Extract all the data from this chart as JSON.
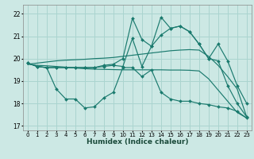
{
  "xlabel": "Humidex (Indice chaleur)",
  "background_color": "#cce8e4",
  "grid_color": "#aad4cf",
  "line_color": "#1a7a6e",
  "ylim": [
    16.8,
    22.4
  ],
  "yticks": [
    17,
    18,
    19,
    20,
    21,
    22
  ],
  "n_points": 24,
  "series": {
    "upper_data": [
      19.8,
      19.65,
      19.6,
      19.6,
      19.6,
      19.6,
      19.6,
      19.6,
      19.7,
      19.75,
      20.0,
      21.8,
      20.85,
      20.55,
      21.05,
      21.35,
      21.45,
      21.2,
      20.65,
      20.0,
      20.65,
      19.9,
      18.8,
      18.0
    ],
    "main_data": [
      19.8,
      19.65,
      19.6,
      19.6,
      19.6,
      19.6,
      19.6,
      19.6,
      19.65,
      19.7,
      19.65,
      20.9,
      19.65,
      20.55,
      21.85,
      21.35,
      21.45,
      21.2,
      20.65,
      20.0,
      19.9,
      18.8,
      18.0,
      17.4
    ],
    "lower_data": [
      19.8,
      19.65,
      19.6,
      18.65,
      18.2,
      18.2,
      17.8,
      17.85,
      18.25,
      18.5,
      19.6,
      19.6,
      19.2,
      19.5,
      18.5,
      18.2,
      18.1,
      18.1,
      18.0,
      17.95,
      17.85,
      17.8,
      17.65,
      17.35
    ],
    "trend_upper": [
      19.75,
      19.8,
      19.85,
      19.9,
      19.93,
      19.95,
      19.97,
      20.0,
      20.02,
      20.05,
      20.1,
      20.15,
      20.2,
      20.25,
      20.3,
      20.35,
      20.38,
      20.4,
      20.38,
      20.1,
      19.7,
      19.2,
      18.65,
      17.4
    ],
    "trend_lower": [
      19.75,
      19.7,
      19.68,
      19.65,
      19.62,
      19.58,
      19.55,
      19.53,
      19.52,
      19.51,
      19.5,
      19.5,
      19.5,
      19.5,
      19.5,
      19.49,
      19.49,
      19.48,
      19.45,
      19.1,
      18.6,
      18.1,
      17.6,
      17.35
    ]
  }
}
